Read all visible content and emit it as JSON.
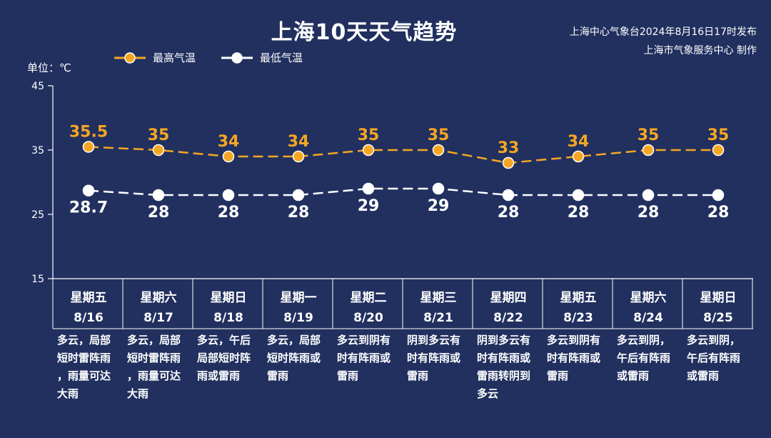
{
  "title": "上海10天天气趋势",
  "publish_line1": "上海中心气象台2024年8月16日17时发布",
  "publish_line2": "上海市气象服务中心 制作",
  "unit_label": "单位：℃",
  "colors": {
    "background": "#21305f",
    "high": "#f5a623",
    "low": "#ffffff"
  },
  "chart_data": {
    "type": "line",
    "title": "上海10天天气趋势",
    "ylabel": "单位：℃",
    "ylim": [
      15,
      45
    ],
    "yticks": [
      15,
      25,
      35,
      45
    ],
    "categories": [
      "星期五 8/16",
      "星期六 8/17",
      "星期日 8/18",
      "星期一 8/19",
      "星期二 8/20",
      "星期三 8/21",
      "星期四 8/22",
      "星期五 8/23",
      "星期六 8/24",
      "星期日 8/25"
    ],
    "series": [
      {
        "name": "最高气温",
        "values": [
          35.5,
          35,
          34,
          34,
          35,
          35,
          33,
          34,
          35,
          35
        ],
        "labels": [
          "35.5",
          "35",
          "34",
          "34",
          "35",
          "35",
          "33",
          "34",
          "35",
          "35"
        ]
      },
      {
        "name": "最低气温",
        "values": [
          28.7,
          28,
          28,
          28,
          29,
          29,
          28,
          28,
          28,
          28
        ],
        "labels": [
          "28.7",
          "28",
          "28",
          "28",
          "29",
          "29",
          "28",
          "28",
          "28",
          "28"
        ]
      }
    ],
    "legend_position": "top-left",
    "grid": false
  },
  "days": [
    {
      "weekday": "星期五",
      "date": "8/16",
      "weather": [
        "多云，局部",
        "短时雷阵雨",
        "，雨量可达",
        "大雨"
      ]
    },
    {
      "weekday": "星期六",
      "date": "8/17",
      "weather": [
        "多云，局部",
        "短时雷阵雨",
        "，雨量可达",
        "大雨"
      ]
    },
    {
      "weekday": "星期日",
      "date": "8/18",
      "weather": [
        "多云，午后",
        "局部短时阵",
        "雨或雷雨"
      ]
    },
    {
      "weekday": "星期一",
      "date": "8/19",
      "weather": [
        "多云，局部",
        "短时阵雨或",
        "雷雨"
      ]
    },
    {
      "weekday": "星期二",
      "date": "8/20",
      "weather": [
        "多云到阴有",
        "时有阵雨或",
        "雷雨"
      ]
    },
    {
      "weekday": "星期三",
      "date": "8/21",
      "weather": [
        "阴到多云有",
        "时有阵雨或",
        "雷雨"
      ]
    },
    {
      "weekday": "星期四",
      "date": "8/22",
      "weather": [
        "阴到多云有",
        "时有阵雨或",
        "雷雨转阴到",
        "多云"
      ]
    },
    {
      "weekday": "星期五",
      "date": "8/23",
      "weather": [
        "多云到阴有",
        "时有阵雨或",
        "雷雨"
      ]
    },
    {
      "weekday": "星期六",
      "date": "8/24",
      "weather": [
        "多云到阴，",
        "午后有阵雨",
        "或雷雨"
      ]
    },
    {
      "weekday": "星期日",
      "date": "8/25",
      "weather": [
        "多云到阴，",
        "午后有阵雨",
        "或雷雨"
      ]
    }
  ]
}
